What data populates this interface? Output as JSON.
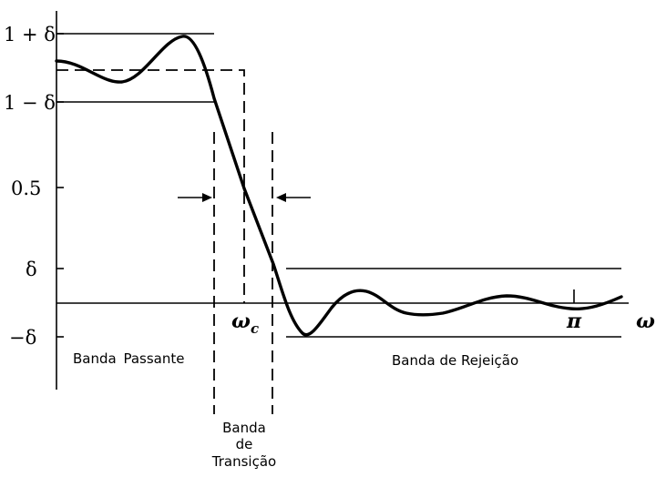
{
  "diagram": {
    "y_labels": {
      "one_plus_delta": "1 + δ",
      "one_minus_delta": "1 − δ",
      "half": "0.5",
      "delta": "δ",
      "minus_delta": "−δ"
    },
    "x_labels": {
      "omega_c": "ω",
      "omega_c_sub": "c",
      "pi": "π",
      "omega": "ω"
    },
    "band_labels": {
      "passband": "Banda Passante",
      "stopband": "Banda de Rejeição",
      "transition_line1": "Banda",
      "transition_line2": "de",
      "transition_line3": "Transição"
    }
  }
}
